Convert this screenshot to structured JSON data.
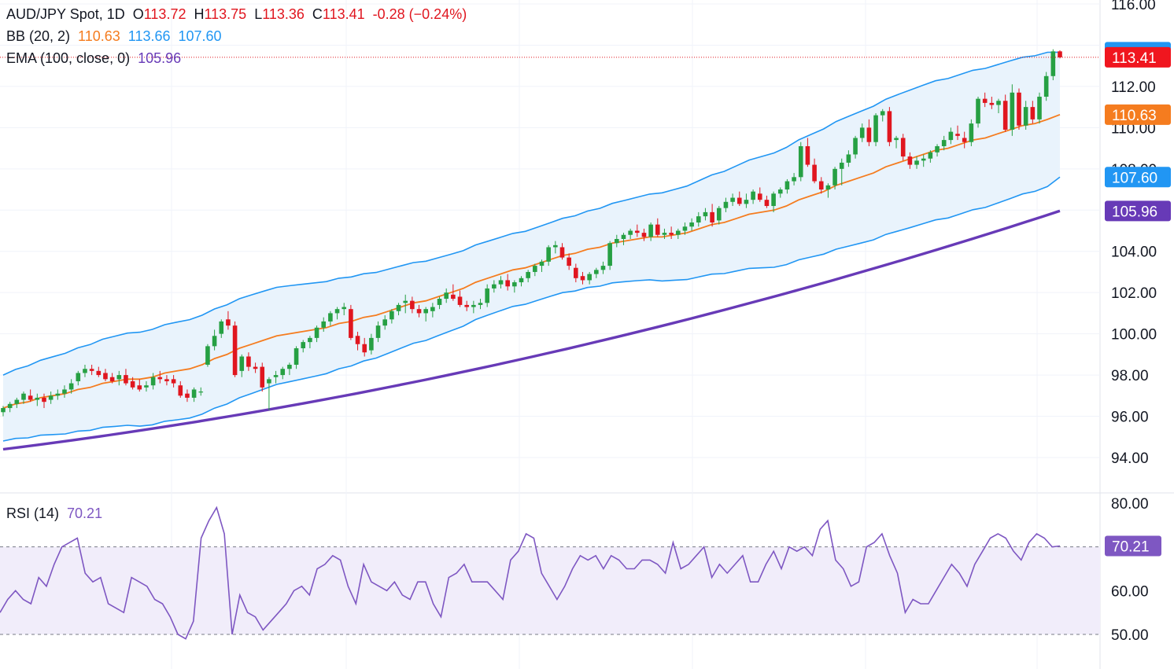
{
  "legend": {
    "symbol": "AUD/JPY Spot, 1D",
    "o_label": "O",
    "o_value": "113.72",
    "h_label": "H",
    "h_value": "113.75",
    "l_label": "L",
    "l_value": "113.36",
    "c_label": "C",
    "c_value": "113.41",
    "change": "-0.28 (−0.24%)",
    "bb_label": "BB (20, 2)",
    "bb_basis": "110.63",
    "bb_upper": "113.66",
    "bb_lower": "107.60",
    "ema_label": "EMA (100, close, 0)",
    "ema_value": "105.96",
    "rsi_label": "RSI (14)",
    "rsi_value": "70.21"
  },
  "colors": {
    "up": "#26a043",
    "down": "#e0161f",
    "bb_basis": "#f57c1f",
    "bb_bands": "#2196f3",
    "bb_fill": "#e9f3fc",
    "ema": "#673ab7",
    "rsi_line": "#7e57c2",
    "rsi_fill": "#f1edfa",
    "grid": "#f0f3fa",
    "text": "#131722"
  },
  "chart_data": [
    {
      "type": "candlestick",
      "title": "AUD/JPY Spot, 1D",
      "ylim": [
        94,
        116
      ],
      "ytick_labels": [
        "116.00",
        "112.00",
        "110.00",
        "108.00",
        "104.00",
        "102.00",
        "100.00",
        "98.00",
        "96.00",
        "94.00"
      ],
      "grid": true,
      "last_price_tags": [
        {
          "label": "113.66",
          "color": "#2196f3",
          "value": 113.66
        },
        {
          "label": "113.41",
          "color": "#f0161f",
          "value": 113.41
        },
        {
          "label": "110.63",
          "color": "#f57c1f",
          "value": 110.63
        },
        {
          "label": "107.60",
          "color": "#2196f3",
          "value": 107.6
        },
        {
          "label": "105.96",
          "color": "#673ab7",
          "value": 105.96
        }
      ],
      "candles": [
        [
          96.2,
          96.5,
          96.0,
          96.4
        ],
        [
          96.4,
          96.7,
          96.2,
          96.6
        ],
        [
          96.6,
          96.9,
          96.4,
          96.8
        ],
        [
          96.8,
          97.2,
          96.6,
          97.1
        ],
        [
          97.0,
          97.3,
          96.7,
          96.8
        ],
        [
          96.8,
          97.1,
          96.5,
          96.9
        ],
        [
          96.9,
          97.1,
          96.4,
          96.7
        ],
        [
          96.8,
          97.2,
          96.6,
          97.0
        ],
        [
          97.0,
          97.3,
          96.8,
          97.1
        ],
        [
          97.1,
          97.5,
          96.9,
          97.3
        ],
        [
          97.3,
          97.8,
          97.1,
          97.6
        ],
        [
          97.7,
          98.2,
          97.5,
          98.1
        ],
        [
          98.1,
          98.5,
          97.9,
          98.3
        ],
        [
          98.3,
          98.5,
          98.0,
          98.2
        ],
        [
          98.2,
          98.4,
          97.9,
          98.0
        ],
        [
          98.1,
          98.3,
          97.7,
          97.8
        ],
        [
          97.9,
          98.1,
          97.6,
          97.7
        ],
        [
          97.8,
          98.2,
          97.5,
          98.0
        ],
        [
          98.0,
          98.3,
          97.5,
          97.6
        ],
        [
          97.7,
          97.9,
          97.3,
          97.4
        ],
        [
          97.5,
          97.8,
          97.2,
          97.3
        ],
        [
          97.4,
          97.7,
          97.2,
          97.5
        ],
        [
          97.5,
          98.1,
          97.3,
          97.9
        ],
        [
          97.9,
          98.2,
          97.6,
          97.8
        ],
        [
          97.8,
          98.0,
          97.5,
          97.7
        ],
        [
          97.8,
          98.0,
          97.4,
          97.6
        ],
        [
          97.5,
          97.7,
          96.9,
          97.0
        ],
        [
          97.1,
          97.3,
          96.7,
          96.9
        ],
        [
          96.9,
          97.4,
          96.7,
          97.3
        ],
        [
          97.2,
          97.4,
          97.0,
          97.2
        ],
        [
          98.5,
          99.5,
          98.4,
          99.4
        ],
        [
          99.4,
          100.2,
          99.2,
          99.9
        ],
        [
          100.0,
          100.7,
          99.8,
          100.6
        ],
        [
          100.7,
          101.1,
          100.2,
          100.4
        ],
        [
          100.4,
          100.6,
          97.9,
          98.0
        ],
        [
          98.2,
          99.0,
          97.9,
          98.9
        ],
        [
          98.9,
          99.1,
          98.2,
          98.4
        ],
        [
          98.4,
          98.6,
          98.1,
          98.3
        ],
        [
          98.4,
          98.6,
          97.2,
          97.4
        ],
        [
          97.6,
          97.9,
          96.3,
          97.8
        ],
        [
          97.9,
          98.2,
          97.6,
          98.0
        ],
        [
          98.0,
          98.4,
          97.8,
          98.3
        ],
        [
          98.3,
          98.6,
          98.0,
          98.5
        ],
        [
          98.5,
          99.4,
          98.3,
          99.3
        ],
        [
          99.3,
          99.7,
          99.1,
          99.6
        ],
        [
          99.6,
          99.9,
          99.3,
          99.8
        ],
        [
          99.8,
          100.4,
          99.6,
          100.3
        ],
        [
          100.3,
          100.8,
          100.1,
          100.6
        ],
        [
          100.6,
          101.1,
          100.4,
          101.0
        ],
        [
          101.0,
          101.3,
          100.7,
          101.2
        ],
        [
          101.2,
          101.5,
          100.9,
          101.3
        ],
        [
          101.2,
          101.4,
          99.7,
          99.8
        ],
        [
          99.9,
          100.1,
          99.2,
          99.5
        ],
        [
          99.5,
          99.8,
          98.9,
          99.1
        ],
        [
          99.2,
          100.0,
          99.0,
          99.8
        ],
        [
          99.8,
          100.6,
          99.6,
          100.4
        ],
        [
          100.4,
          100.9,
          100.2,
          100.7
        ],
        [
          100.7,
          101.2,
          100.5,
          101.1
        ],
        [
          101.1,
          101.5,
          100.9,
          101.4
        ],
        [
          101.5,
          101.9,
          101.0,
          101.6
        ],
        [
          101.6,
          101.8,
          101.0,
          101.2
        ],
        [
          101.2,
          101.4,
          100.8,
          101.0
        ],
        [
          101.0,
          101.3,
          100.6,
          101.2
        ],
        [
          101.1,
          101.5,
          100.8,
          101.3
        ],
        [
          101.4,
          101.8,
          101.2,
          101.7
        ],
        [
          101.7,
          102.2,
          101.5,
          102.0
        ],
        [
          101.9,
          102.4,
          101.6,
          101.7
        ],
        [
          101.8,
          102.1,
          101.3,
          101.4
        ],
        [
          101.4,
          101.6,
          101.1,
          101.3
        ],
        [
          101.3,
          101.6,
          101.0,
          101.4
        ],
        [
          101.4,
          101.7,
          101.2,
          101.5
        ],
        [
          101.5,
          102.4,
          101.3,
          102.2
        ],
        [
          102.2,
          102.6,
          102.0,
          102.4
        ],
        [
          102.4,
          102.8,
          102.2,
          102.6
        ],
        [
          102.6,
          102.9,
          102.1,
          102.3
        ],
        [
          102.3,
          102.6,
          102.0,
          102.5
        ],
        [
          102.5,
          102.8,
          102.3,
          102.7
        ],
        [
          102.7,
          103.1,
          102.5,
          103.0
        ],
        [
          103.0,
          103.4,
          102.8,
          103.3
        ],
        [
          103.3,
          103.6,
          103.0,
          103.5
        ],
        [
          103.5,
          104.3,
          103.3,
          104.2
        ],
        [
          104.2,
          104.5,
          103.9,
          104.3
        ],
        [
          104.2,
          104.4,
          103.6,
          103.7
        ],
        [
          103.7,
          103.9,
          103.1,
          103.3
        ],
        [
          103.2,
          103.4,
          102.5,
          102.7
        ],
        [
          102.8,
          103.0,
          102.4,
          102.6
        ],
        [
          102.6,
          103.0,
          102.4,
          102.9
        ],
        [
          102.9,
          103.2,
          102.7,
          103.1
        ],
        [
          103.1,
          103.5,
          102.9,
          103.3
        ],
        [
          103.3,
          104.5,
          103.1,
          104.4
        ],
        [
          104.4,
          104.8,
          104.2,
          104.6
        ],
        [
          104.6,
          104.9,
          104.3,
          104.8
        ],
        [
          104.8,
          105.1,
          104.6,
          105.0
        ],
        [
          105.0,
          105.3,
          104.7,
          104.9
        ],
        [
          104.9,
          105.1,
          104.5,
          104.7
        ],
        [
          104.7,
          105.4,
          104.5,
          105.3
        ],
        [
          105.3,
          105.6,
          104.7,
          104.8
        ],
        [
          104.8,
          105.1,
          104.6,
          104.9
        ],
        [
          104.9,
          105.2,
          104.6,
          104.8
        ],
        [
          104.8,
          105.1,
          104.6,
          105.0
        ],
        [
          105.0,
          105.4,
          104.8,
          105.2
        ],
        [
          105.2,
          105.6,
          105.0,
          105.4
        ],
        [
          105.4,
          105.9,
          105.2,
          105.7
        ],
        [
          105.7,
          106.1,
          105.5,
          105.9
        ],
        [
          105.9,
          106.3,
          105.2,
          105.4
        ],
        [
          105.5,
          106.2,
          105.3,
          106.1
        ],
        [
          106.1,
          106.6,
          105.9,
          106.4
        ],
        [
          106.4,
          106.8,
          106.2,
          106.6
        ],
        [
          106.6,
          106.9,
          106.2,
          106.3
        ],
        [
          106.3,
          106.8,
          106.1,
          106.5
        ],
        [
          106.5,
          107.0,
          106.3,
          106.9
        ],
        [
          106.8,
          107.1,
          106.4,
          106.5
        ],
        [
          106.5,
          106.7,
          106.1,
          106.2
        ],
        [
          106.2,
          106.9,
          105.9,
          106.8
        ],
        [
          106.8,
          107.1,
          106.6,
          107.0
        ],
        [
          107.0,
          107.5,
          106.8,
          107.4
        ],
        [
          107.4,
          107.8,
          107.2,
          107.6
        ],
        [
          107.6,
          109.3,
          107.4,
          109.1
        ],
        [
          109.1,
          109.5,
          108.1,
          108.2
        ],
        [
          108.2,
          108.5,
          107.3,
          107.4
        ],
        [
          107.4,
          107.6,
          106.8,
          107.0
        ],
        [
          107.0,
          107.3,
          106.6,
          107.2
        ],
        [
          107.2,
          108.1,
          107.0,
          108.0
        ],
        [
          108.0,
          108.5,
          107.2,
          108.3
        ],
        [
          108.3,
          108.9,
          108.1,
          108.7
        ],
        [
          108.7,
          109.6,
          108.5,
          109.5
        ],
        [
          109.5,
          110.2,
          109.3,
          110.0
        ],
        [
          110.0,
          110.4,
          109.1,
          109.3
        ],
        [
          109.3,
          110.7,
          109.1,
          110.6
        ],
        [
          110.6,
          110.9,
          110.3,
          110.8
        ],
        [
          110.8,
          111.0,
          109.1,
          109.3
        ],
        [
          109.4,
          109.6,
          109.0,
          109.5
        ],
        [
          109.5,
          109.7,
          108.4,
          108.6
        ],
        [
          108.6,
          108.8,
          108.0,
          108.2
        ],
        [
          108.2,
          108.6,
          108.0,
          108.4
        ],
        [
          108.4,
          108.7,
          108.1,
          108.5
        ],
        [
          108.5,
          108.9,
          108.3,
          108.8
        ],
        [
          108.8,
          109.2,
          108.6,
          109.1
        ],
        [
          109.1,
          109.6,
          108.9,
          109.4
        ],
        [
          109.4,
          110.0,
          109.2,
          109.8
        ],
        [
          109.7,
          110.1,
          109.4,
          109.6
        ],
        [
          109.5,
          109.8,
          109.0,
          109.3
        ],
        [
          109.3,
          110.4,
          109.1,
          110.2
        ],
        [
          110.2,
          111.5,
          110.0,
          111.4
        ],
        [
          111.4,
          111.7,
          111.0,
          111.2
        ],
        [
          111.2,
          111.5,
          110.9,
          111.1
        ],
        [
          111.1,
          111.4,
          110.7,
          111.3
        ],
        [
          111.3,
          111.6,
          109.8,
          109.9
        ],
        [
          109.9,
          112.1,
          109.6,
          111.7
        ],
        [
          111.7,
          111.9,
          109.9,
          110.1
        ],
        [
          110.1,
          111.3,
          109.9,
          111.0
        ],
        [
          111.0,
          111.3,
          110.2,
          110.4
        ],
        [
          110.4,
          111.7,
          110.2,
          111.5
        ],
        [
          111.5,
          112.7,
          111.3,
          112.5
        ],
        [
          112.5,
          113.8,
          112.3,
          113.7
        ],
        [
          113.7,
          113.75,
          113.36,
          113.41
        ]
      ],
      "bb_basis": [
        96.4,
        96.6,
        96.7,
        96.9,
        97.0,
        97.1,
        97.3,
        97.4,
        97.6,
        97.7,
        97.8,
        97.8,
        97.9,
        98.1,
        98.2,
        98.3,
        98.5,
        98.8,
        99.0,
        99.3,
        99.5,
        99.7,
        99.9,
        100.0,
        100.1,
        100.2,
        100.3,
        100.5,
        100.6,
        100.8,
        100.9,
        101.1,
        101.3,
        101.5,
        101.6,
        101.8,
        102.0,
        102.2,
        102.5,
        102.7,
        102.9,
        103.1,
        103.2,
        103.4,
        103.6,
        103.8,
        103.9,
        104.1,
        104.2,
        104.4,
        104.5,
        104.6,
        104.7,
        104.7,
        104.8,
        104.9,
        105.1,
        105.3,
        105.4,
        105.6,
        105.8,
        105.9,
        106.0,
        106.2,
        106.5,
        106.7,
        106.9,
        107.2,
        107.4,
        107.6,
        107.8,
        108.1,
        108.3,
        108.5,
        108.7,
        108.9,
        109.0,
        109.2,
        109.4,
        109.5,
        109.7,
        109.9,
        110.1,
        110.2,
        110.4,
        110.63
      ]
    },
    {
      "type": "line",
      "title": "RSI (14)",
      "ylim": [
        50,
        80
      ],
      "ytick_labels": [
        "80.00",
        "60.00",
        "50.00"
      ],
      "last_value_tag": "70.21",
      "values": [
        55,
        58,
        60,
        58,
        57,
        63,
        61,
        66,
        70,
        71,
        72,
        64,
        62,
        63,
        57,
        56,
        55,
        63,
        62,
        61,
        58,
        57,
        54,
        50,
        49,
        53,
        72,
        76,
        79,
        73,
        50,
        59,
        55,
        54,
        51,
        53,
        55,
        57,
        60,
        61,
        59,
        65,
        66,
        68,
        67,
        61,
        57,
        66,
        62,
        61,
        60,
        62,
        59,
        58,
        62,
        62,
        57,
        54,
        63,
        64,
        66,
        62,
        62,
        62,
        60,
        58,
        67,
        69,
        73,
        72,
        64,
        61,
        58,
        61,
        65,
        68,
        67,
        68,
        65,
        68,
        67,
        65,
        65,
        67,
        67,
        66,
        64,
        71,
        65,
        66,
        68,
        70,
        63,
        66,
        64,
        66,
        68,
        62,
        62,
        66,
        69,
        65,
        70,
        69,
        70,
        68,
        74,
        76,
        67,
        65,
        61,
        62,
        70,
        71,
        73,
        68,
        64,
        55,
        58,
        57,
        57,
        60,
        63,
        66,
        64,
        61,
        66,
        69,
        72,
        73,
        72,
        69,
        67,
        71,
        73,
        72,
        70,
        70.21
      ]
    }
  ]
}
